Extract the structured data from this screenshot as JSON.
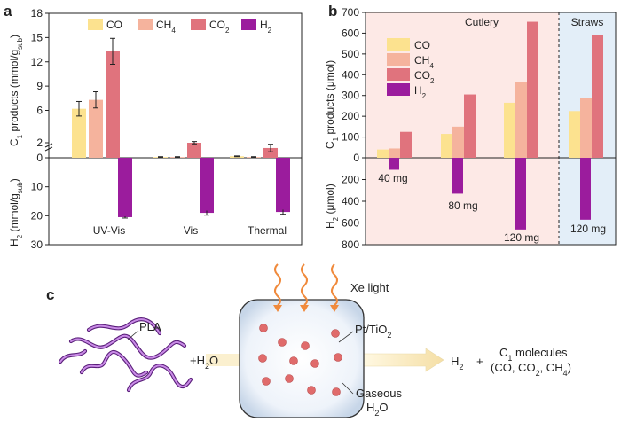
{
  "panels": {
    "a": "a",
    "b": "b",
    "c": "c"
  },
  "colors": {
    "CO": "#fce28f",
    "CH4": "#f5b39d",
    "CO2": "#e0737d",
    "H2": "#9b1c9d",
    "cutlery_bg": "#fde9e6",
    "straws_bg": "#e3eef8",
    "accent_orange": "#f08a3c",
    "polymer": "#a24bd0",
    "particle": "#e06b6b"
  },
  "chart_data": [
    {
      "id": "a",
      "type": "bar",
      "title": "",
      "categories": [
        "UV-Vis",
        "Vis",
        "Thermal"
      ],
      "legend": {
        "placement": "top",
        "items": [
          {
            "key": "CO",
            "label": "CO"
          },
          {
            "key": "CH4",
            "label": "CH",
            "sub": "4"
          },
          {
            "key": "CO2",
            "label": "CO",
            "sub": "2"
          },
          {
            "key": "H2",
            "label": "H",
            "sub": "2"
          }
        ]
      },
      "top": {
        "ylabel": {
          "main": "C",
          "s1": "1",
          "rest": " products (mmol/g",
          "s2": "sub",
          "end": ")"
        },
        "ylim": [
          0,
          18
        ],
        "ticks": [
          0,
          2,
          6,
          9,
          12,
          15,
          18
        ],
        "tick_labels": [
          "0",
          "2",
          "6",
          "9",
          "12",
          "15",
          "18"
        ],
        "series": [
          {
            "key": "CO",
            "values": [
              6.2,
              0.1,
              0.2
            ],
            "errors": [
              0.9,
              0.05,
              0.05
            ]
          },
          {
            "key": "CH4",
            "values": [
              7.3,
              0.1,
              0.1
            ],
            "errors": [
              1.0,
              0.05,
              0.05
            ]
          },
          {
            "key": "CO2",
            "values": [
              13.3,
              2.0,
              1.3
            ],
            "errors": [
              1.6,
              0.15,
              0.5
            ]
          }
        ]
      },
      "bottom": {
        "ylabel": {
          "main": "H",
          "s1": "2",
          "rest": " (mmol/g",
          "s2": "sub",
          "end": ")"
        },
        "ylim": [
          0,
          30
        ],
        "ticks": [
          0,
          10,
          20,
          30
        ],
        "tick_labels": [
          "0",
          "10",
          "20",
          "30"
        ],
        "series": [
          {
            "key": "H2",
            "values": [
              20.5,
              19.0,
              18.7
            ],
            "errors": [
              0.3,
              0.8,
              0.8
            ]
          }
        ]
      }
    },
    {
      "id": "b",
      "type": "bar",
      "title": "",
      "legend": {
        "placement": "top-left",
        "items": [
          {
            "key": "CO",
            "label": "CO"
          },
          {
            "key": "CH4",
            "label": "CH",
            "sub": "4"
          },
          {
            "key": "CO2",
            "label": "CO",
            "sub": "2"
          },
          {
            "key": "H2",
            "label": "H",
            "sub": "2"
          }
        ]
      },
      "regions": [
        {
          "name": "Cutlery",
          "groups": [
            0,
            1,
            2
          ]
        },
        {
          "name": "Straws",
          "groups": [
            3
          ]
        }
      ],
      "groups": [
        "40 mg",
        "80 mg",
        "120 mg",
        "120 mg"
      ],
      "top": {
        "ylabel": {
          "main": "C",
          "s1": "1",
          "rest": " products (μmol)"
        },
        "ylim": [
          0,
          700
        ],
        "ticks": [
          0,
          100,
          200,
          300,
          400,
          500,
          600,
          700
        ],
        "tick_labels": [
          "0",
          "100",
          "200",
          "300",
          "400",
          "500",
          "600",
          "700"
        ],
        "series": [
          {
            "key": "CO",
            "values": [
              40,
              115,
              265,
              225
            ]
          },
          {
            "key": "CH4",
            "values": [
              45,
              150,
              365,
              290
            ]
          },
          {
            "key": "CO2",
            "values": [
              125,
              305,
              655,
              590
            ]
          }
        ]
      },
      "bottom": {
        "ylabel": {
          "main": "H",
          "s1": "2",
          "rest": " (μmol)"
        },
        "ylim": [
          0,
          800
        ],
        "ticks": [
          200,
          400,
          600,
          800
        ],
        "tick_labels": [
          "200",
          "400",
          "600",
          "800"
        ],
        "series": [
          {
            "key": "H2",
            "values": [
              110,
              330,
              660,
              570
            ]
          }
        ]
      }
    }
  ],
  "scheme": {
    "polymer_label": "PLA",
    "water_label": "+H",
    "water_sub": "2",
    "water_end": "O",
    "light_label": "Xe light",
    "catalyst_label": "Pt/TiO",
    "catalyst_sub": "2",
    "gas_label_1": "Gaseous",
    "gas_label_2_main": "H",
    "gas_label_2_sub": "2",
    "gas_label_2_end": "O",
    "product_h2_main": "H",
    "product_h2_sub": "2",
    "plus": "+",
    "product_c1_main": "C",
    "product_c1_sub": "1",
    "product_c1_rest": " molecules",
    "product_list_open": "(CO, CO",
    "product_list_sub1": "2",
    "product_list_mid": ", CH",
    "product_list_sub2": "4",
    "product_list_close": ")"
  }
}
